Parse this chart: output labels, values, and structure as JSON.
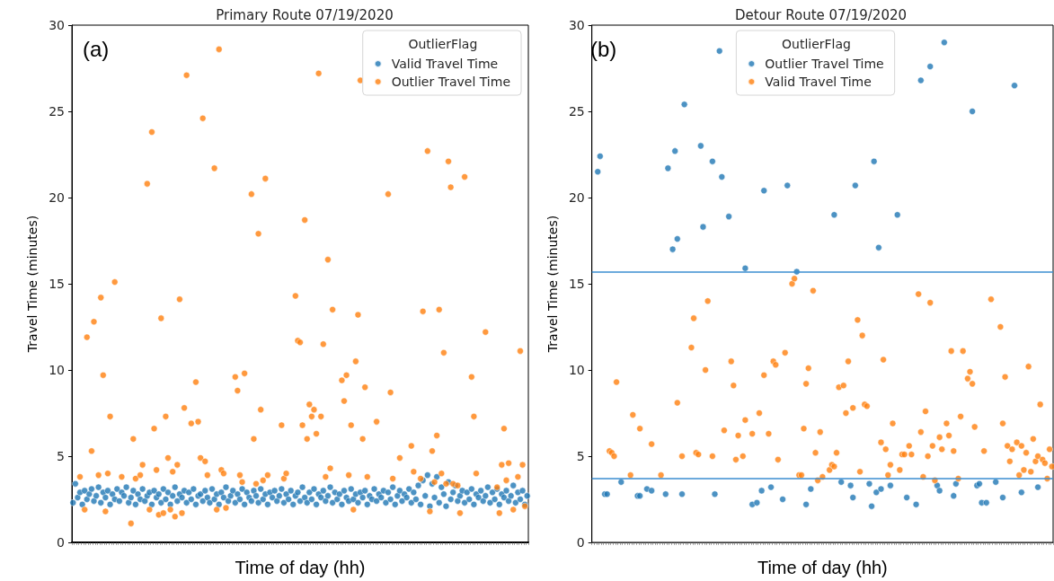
{
  "chart_data": [
    {
      "type": "scatter",
      "title": "Primary Route 07/19/2020",
      "xlabel": "Time of day (hh)",
      "ylabel": "Travel Time (minutes)",
      "legend_title": "OutlierFlag",
      "annotations": [
        "(a)"
      ],
      "ylim": [
        0,
        30
      ],
      "yticks": [
        0,
        5,
        10,
        15,
        20,
        25,
        30
      ],
      "tick_labels": "y",
      "grid": false,
      "legend": "top right",
      "marker": "circle",
      "categories": [
        null,
        null,
        null,
        null,
        null,
        null,
        null,
        null,
        null,
        null,
        null,
        null,
        null,
        null,
        null,
        null,
        null,
        null,
        null,
        null,
        null,
        null,
        null,
        null,
        null,
        null,
        null,
        null,
        null,
        null,
        null,
        null,
        null,
        null,
        null,
        null,
        null,
        null,
        null,
        null,
        null,
        null,
        null,
        null,
        null,
        null,
        null,
        null,
        null,
        null,
        null,
        null,
        null,
        null,
        null,
        null,
        null,
        null,
        null,
        null,
        null,
        null,
        null,
        null,
        null,
        null,
        null,
        null,
        null,
        null,
        null,
        null,
        null,
        null,
        null,
        null,
        null,
        null,
        null,
        null,
        null,
        null,
        null,
        null,
        null,
        null,
        null,
        null,
        null,
        null,
        null,
        null,
        null,
        null,
        null,
        null,
        null,
        null,
        null,
        null,
        null,
        null,
        null,
        null,
        null,
        null,
        null,
        null,
        null,
        null,
        null,
        null,
        null,
        null,
        null,
        null,
        null,
        null,
        null,
        null,
        null,
        null,
        null,
        null,
        null,
        null,
        null,
        null,
        null,
        null,
        null,
        null,
        null,
        null,
        null,
        null,
        null,
        null,
        null,
        null,
        null,
        null,
        null,
        null,
        null,
        null,
        null,
        null,
        null,
        null,
        null,
        null,
        null,
        null,
        null,
        null,
        null,
        null,
        null,
        null,
        null,
        null,
        null,
        null,
        null,
        null,
        null,
        null,
        null,
        null,
        null,
        null,
        null,
        null,
        null,
        null,
        null,
        null,
        null,
        null,
        null,
        null,
        null,
        null,
        null,
        null,
        null,
        null,
        null,
        null,
        null,
        null,
        null,
        null,
        null,
        null,
        null
      ],
      "series": [
        {
          "name": "Valid Travel Time",
          "color": "#1f77b4",
          "values": [
            2.3,
            3.4,
            2.6,
            2.9,
            2.2,
            3.0,
            2.5,
            2.8,
            3.1,
            2.4,
            2.7,
            3.2,
            2.3,
            2.9,
            2.6,
            3.0,
            2.2,
            2.8,
            2.5,
            3.1,
            2.4,
            2.9,
            2.7,
            3.2,
            2.3,
            2.6,
            3.0,
            2.2,
            2.8,
            2.5,
            3.1,
            2.4,
            2.7,
            2.9,
            2.2,
            3.0,
            2.6,
            2.8,
            2.3,
            3.1,
            2.5,
            2.9,
            2.2,
            2.7,
            3.2,
            2.4,
            2.8,
            2.6,
            3.0,
            2.3,
            2.9,
            2.5,
            3.1,
            2.2,
            2.7,
            2.8,
            2.4,
            3.0,
            2.6,
            2.3,
            3.1,
            2.5,
            2.8,
            2.2,
            2.9,
            2.6,
            3.2,
            2.4,
            2.7,
            3.0,
            2.3,
            2.8,
            2.5,
            3.1,
            2.2,
            2.9,
            2.6,
            2.4,
            3.0,
            2.7,
            2.3,
            3.1,
            2.5,
            2.8,
            2.2,
            2.9,
            2.6,
            3.0,
            2.4,
            2.7,
            3.1,
            2.3,
            2.8,
            2.5,
            3.0,
            2.2,
            2.7,
            2.9,
            2.4,
            3.2,
            2.6,
            2.3,
            2.9,
            2.5,
            3.1,
            2.2,
            2.8,
            2.6,
            3.0,
            2.4,
            2.7,
            3.2,
            2.3,
            2.9,
            2.5,
            2.8,
            2.2,
            3.0,
            2.6,
            2.4,
            3.1,
            2.5,
            2.8,
            2.3,
            2.9,
            2.6,
            3.0,
            2.2,
            2.7,
            2.5,
            3.1,
            2.4,
            2.8,
            2.6,
            3.0,
            2.3,
            2.9,
            2.5,
            3.2,
            2.2,
            2.7,
            3.0,
            2.4,
            2.8,
            2.6,
            3.1,
            2.3,
            2.9,
            2.5,
            3.3,
            2.2,
            3.6,
            2.7,
            3.9,
            2.1,
            3.4,
            2.6,
            3.8,
            2.3,
            3.2,
            2.8,
            2.1,
            3.5,
            2.5,
            2.9,
            3.3,
            2.4,
            2.7,
            3.0,
            2.3,
            2.9,
            2.5,
            3.1,
            2.2,
            2.8,
            2.6,
            3.0,
            2.4,
            2.7,
            3.2,
            2.3,
            2.9,
            2.5,
            3.1,
            2.2,
            2.8,
            2.6,
            3.0,
            2.4,
            2.7,
            3.3,
            2.3,
            2.9,
            2.5,
            3.0,
            2.2,
            2.7
          ]
        },
        {
          "name": "Outlier Travel Time",
          "color": "#ff7f0e",
          "values": [
            null,
            null,
            null,
            3.8,
            null,
            1.9,
            11.9,
            null,
            5.3,
            12.8,
            null,
            3.9,
            14.2,
            9.7,
            1.8,
            4.0,
            7.3,
            null,
            15.1,
            null,
            null,
            3.8,
            null,
            null,
            null,
            1.1,
            6.0,
            3.7,
            null,
            3.9,
            4.5,
            null,
            20.8,
            1.9,
            23.8,
            6.6,
            4.2,
            1.6,
            13.0,
            1.7,
            7.3,
            4.9,
            1.9,
            4.1,
            1.5,
            4.5,
            14.1,
            1.7,
            7.8,
            27.1,
            null,
            6.9,
            null,
            9.3,
            7.0,
            4.9,
            24.6,
            4.7,
            3.9,
            null,
            null,
            21.7,
            1.9,
            28.6,
            4.2,
            4.0,
            2.0,
            null,
            null,
            null,
            9.6,
            8.8,
            3.9,
            3.5,
            9.8,
            null,
            null,
            20.2,
            6.0,
            3.4,
            17.9,
            7.7,
            3.6,
            21.1,
            3.9,
            null,
            null,
            null,
            null,
            null,
            6.8,
            3.7,
            4.0,
            null,
            null,
            null,
            14.3,
            11.7,
            11.6,
            6.8,
            18.7,
            6.0,
            8.0,
            7.3,
            7.7,
            6.3,
            27.2,
            7.3,
            11.5,
            3.8,
            16.4,
            4.3,
            13.5,
            null,
            null,
            null,
            9.4,
            8.2,
            9.7,
            3.9,
            6.8,
            1.9,
            10.5,
            13.2,
            26.8,
            6.0,
            9.0,
            3.8,
            null,
            null,
            null,
            7.0,
            null,
            null,
            null,
            null,
            20.2,
            8.7,
            3.7,
            null,
            null,
            4.9,
            null,
            null,
            null,
            null,
            5.6,
            4.1,
            null,
            null,
            3.7,
            13.4,
            null,
            22.7,
            1.8,
            5.3,
            3.5,
            6.2,
            13.5,
            4.0,
            11.0,
            3.4,
            22.1,
            20.6,
            3.4,
            null,
            3.3,
            1.7,
            null,
            21.2,
            null,
            null,
            9.6,
            7.3,
            4.0,
            null,
            null,
            null,
            12.2,
            null,
            null,
            null,
            null,
            3.2,
            1.7,
            4.5,
            6.6,
            3.6,
            4.6,
            null,
            1.9,
            null,
            3.8,
            11.1,
            4.5,
            2.1,
            null
          ]
        }
      ]
    },
    {
      "type": "scatter",
      "title": "Detour Route 07/19/2020",
      "xlabel": "Time of day (hh)",
      "ylabel": "Travel Time (minutes)",
      "legend_title": "OutlierFlag",
      "annotations": [
        "(b)"
      ],
      "ylim": [
        0,
        30
      ],
      "yticks": [
        0,
        5,
        10,
        15,
        20,
        25,
        30
      ],
      "tick_labels": "y",
      "grid": false,
      "legend": "top",
      "marker": "circle",
      "ref_lines": [
        {
          "axis": "y",
          "value": 15.7,
          "color": "#3b8ed0"
        },
        {
          "axis": "y",
          "value": 3.7,
          "color": "#3b8ed0"
        }
      ],
      "categories": [
        null,
        null,
        null,
        null,
        null,
        null,
        null,
        null,
        null,
        null,
        null,
        null,
        null,
        null,
        null,
        null,
        null,
        null,
        null,
        null,
        null,
        null,
        null,
        null,
        null,
        null,
        null,
        null,
        null,
        null,
        null,
        null,
        null,
        null,
        null,
        null,
        null,
        null,
        null,
        null,
        null,
        null,
        null,
        null,
        null,
        null,
        null,
        null,
        null,
        null,
        null,
        null,
        null,
        null,
        null,
        null,
        null,
        null,
        null,
        null,
        null,
        null,
        null,
        null,
        null,
        null,
        null,
        null,
        null,
        null,
        null,
        null,
        null,
        null,
        null,
        null,
        null,
        null,
        null,
        null,
        null,
        null,
        null,
        null,
        null,
        null,
        null,
        null,
        null,
        null,
        null,
        null,
        null,
        null,
        null,
        null,
        null,
        null,
        null,
        null,
        null,
        null,
        null,
        null,
        null,
        null,
        null,
        null,
        null,
        null,
        null,
        null,
        null,
        null,
        null,
        null,
        null,
        null,
        null,
        null,
        null,
        null,
        null,
        null,
        null,
        null,
        null,
        null,
        null,
        null,
        null,
        null,
        null,
        null,
        null,
        null,
        null,
        null,
        null,
        null,
        null,
        null,
        null,
        null,
        null,
        null,
        null,
        null,
        null,
        null,
        null,
        null,
        null,
        null,
        null,
        null,
        null,
        null,
        null,
        null,
        null,
        null,
        null,
        null,
        null,
        null,
        null,
        null,
        null,
        null,
        null,
        null,
        null,
        null,
        null,
        null,
        null,
        null,
        null,
        null,
        null,
        null,
        null,
        null,
        null,
        null,
        null,
        null,
        null,
        null,
        null,
        null,
        null,
        null,
        null,
        null,
        null
      ],
      "series": [
        {
          "name": "Outlier Travel Time",
          "color": "#1f77b4",
          "values": [
            null,
            null,
            21.5,
            22.4,
            null,
            2.8,
            2.8,
            null,
            null,
            null,
            null,
            null,
            3.5,
            null,
            null,
            null,
            null,
            null,
            null,
            2.7,
            2.7,
            null,
            null,
            3.1,
            null,
            3.0,
            null,
            null,
            null,
            null,
            null,
            2.8,
            21.7,
            null,
            17.0,
            22.7,
            17.6,
            null,
            2.8,
            25.4,
            null,
            null,
            null,
            null,
            null,
            null,
            23.0,
            18.3,
            null,
            null,
            null,
            22.1,
            2.8,
            null,
            28.5,
            21.2,
            null,
            null,
            18.9,
            null,
            null,
            null,
            null,
            null,
            null,
            15.9,
            null,
            null,
            2.2,
            null,
            2.3,
            null,
            3.0,
            20.4,
            null,
            null,
            3.2,
            null,
            null,
            null,
            null,
            2.5,
            null,
            20.7,
            null,
            null,
            null,
            15.7,
            null,
            null,
            null,
            2.2,
            null,
            3.1,
            null,
            null,
            null,
            null,
            null,
            null,
            null,
            null,
            null,
            19.0,
            null,
            null,
            3.5,
            null,
            null,
            null,
            3.3,
            2.6,
            20.7,
            null,
            null,
            null,
            null,
            null,
            3.4,
            2.1,
            22.1,
            2.9,
            17.1,
            3.1,
            null,
            null,
            null,
            3.3,
            null,
            null,
            19.0,
            null,
            null,
            null,
            2.6,
            null,
            null,
            null,
            2.2,
            null,
            26.8,
            null,
            null,
            null,
            27.6,
            null,
            null,
            3.3,
            3.0,
            null,
            29.0,
            null,
            null,
            null,
            2.7,
            3.4,
            null,
            null,
            null,
            null,
            null,
            null,
            25.0,
            null,
            3.3,
            3.4,
            2.3,
            null,
            2.3,
            null,
            null,
            null,
            3.5,
            null,
            null,
            2.6,
            null,
            null,
            null,
            null,
            26.5,
            null,
            null,
            2.9,
            null,
            null,
            null,
            null,
            null,
            null,
            3.2,
            null,
            null,
            null,
            null,
            null,
            null
          ]
        },
        {
          "name": "Valid Travel Time",
          "color": "#ff7f0e",
          "values": [
            null,
            null,
            null,
            null,
            null,
            null,
            null,
            5.3,
            5.2,
            5.0,
            9.3,
            null,
            null,
            null,
            null,
            null,
            3.9,
            7.4,
            null,
            null,
            6.6,
            null,
            null,
            null,
            null,
            5.7,
            null,
            null,
            null,
            3.9,
            null,
            null,
            null,
            null,
            null,
            null,
            8.1,
            null,
            5.0,
            null,
            null,
            null,
            11.3,
            13.0,
            5.2,
            5.1,
            null,
            null,
            10.0,
            14.0,
            null,
            5.0,
            null,
            null,
            null,
            null,
            6.5,
            null,
            null,
            10.5,
            9.1,
            4.8,
            6.2,
            null,
            5.0,
            7.1,
            null,
            null,
            6.3,
            null,
            null,
            7.5,
            null,
            9.7,
            null,
            6.3,
            null,
            10.5,
            10.3,
            4.8,
            null,
            null,
            11.0,
            null,
            null,
            15.0,
            15.3,
            null,
            3.9,
            3.9,
            6.6,
            9.2,
            10.1,
            null,
            14.6,
            5.2,
            3.6,
            6.4,
            3.8,
            null,
            null,
            4.2,
            4.5,
            4.4,
            5.2,
            9.0,
            null,
            9.1,
            7.5,
            10.5,
            null,
            7.8,
            null,
            12.9,
            4.1,
            12.0,
            8.0,
            7.9,
            null,
            null,
            null,
            null,
            null,
            5.8,
            10.6,
            5.4,
            3.9,
            4.5,
            6.9,
            null,
            null,
            4.2,
            5.1,
            5.1,
            null,
            5.6,
            5.1,
            null,
            null,
            14.4,
            6.4,
            3.8,
            7.6,
            5.0,
            13.9,
            5.6,
            3.6,
            null,
            6.1,
            5.4,
            null,
            6.9,
            6.2,
            11.1,
            5.3,
            null,
            3.7,
            7.3,
            11.1,
            null,
            9.5,
            9.9,
            9.2,
            6.7,
            null,
            null,
            null,
            5.3,
            null,
            null,
            14.1,
            null,
            null,
            null,
            12.5,
            6.9,
            9.6,
            5.6,
            4.7,
            5.4,
            null,
            5.8,
            3.9,
            5.6,
            4.2,
            5.2,
            10.2,
            4.1,
            6.0,
            4.7,
            5.0,
            8.0,
            4.8,
            4.6,
            3.7,
            5.4,
            4.4
          ]
        }
      ]
    }
  ]
}
